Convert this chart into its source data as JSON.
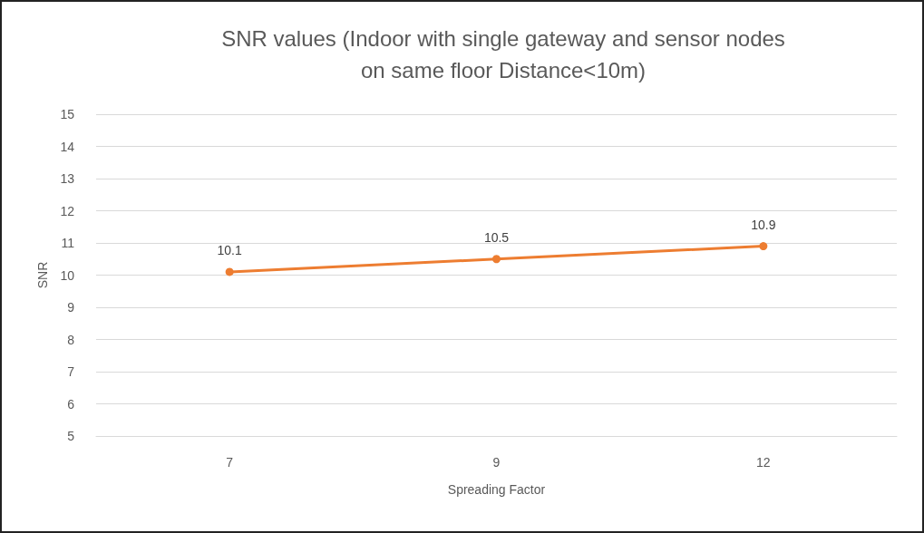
{
  "chart_data": {
    "type": "line",
    "title": "SNR values (Indoor with single gateway and sensor nodes\non same floor Distance<10m)",
    "xlabel": "Spreading Factor",
    "ylabel": "SNR",
    "categories": [
      "7",
      "9",
      "12"
    ],
    "series": [
      {
        "color": "#ed7d31",
        "values": [
          10.1,
          10.5,
          10.9
        ]
      }
    ],
    "ylim": [
      5,
      15
    ],
    "yticks": [
      5,
      6,
      7,
      8,
      9,
      10,
      11,
      12,
      13,
      14,
      15
    ],
    "grid": "y",
    "marker": "circle",
    "line_style": "solid",
    "data_labels": true
  }
}
